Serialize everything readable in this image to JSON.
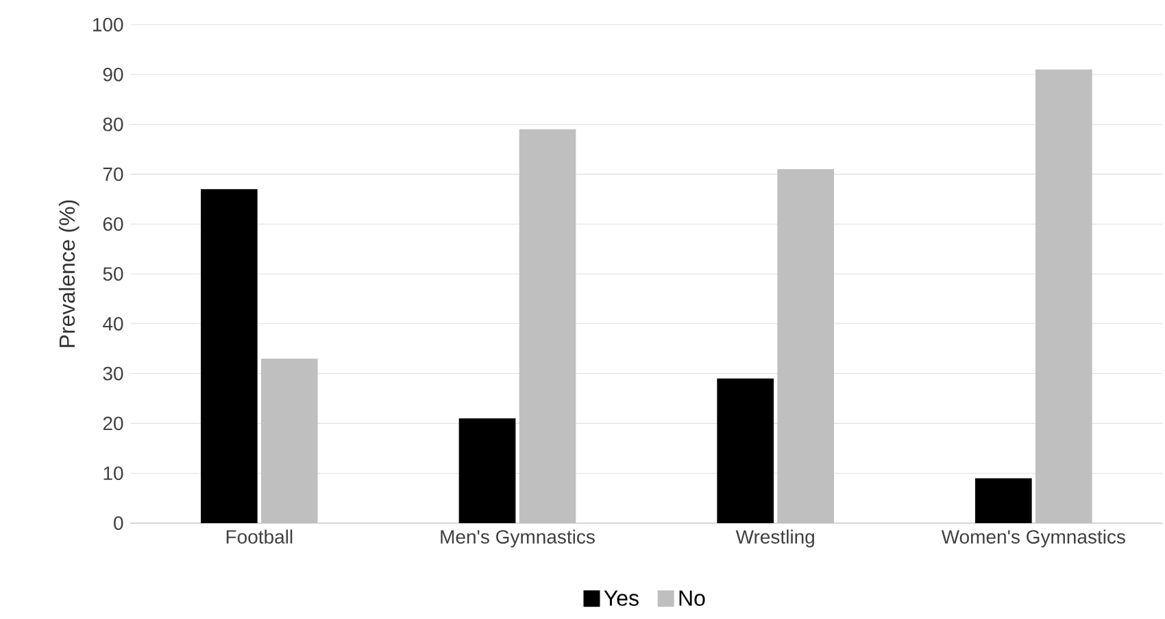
{
  "chart_data": {
    "type": "bar",
    "ylabel": "Prevalence (%)",
    "categories": [
      "Football",
      "Men's Gymnastics",
      "Wrestling",
      "Women's Gymnastics"
    ],
    "series": [
      {
        "name": "Yes",
        "color": "#000000",
        "values": [
          67,
          21,
          29,
          9
        ]
      },
      {
        "name": "No",
        "color": "#bfbfbf",
        "values": [
          33,
          79,
          71,
          91
        ]
      }
    ],
    "ylim": [
      0,
      100
    ],
    "yticks": [
      0,
      10,
      20,
      30,
      40,
      50,
      60,
      70,
      80,
      90,
      100
    ],
    "grid": "y",
    "legend": "bottom"
  }
}
